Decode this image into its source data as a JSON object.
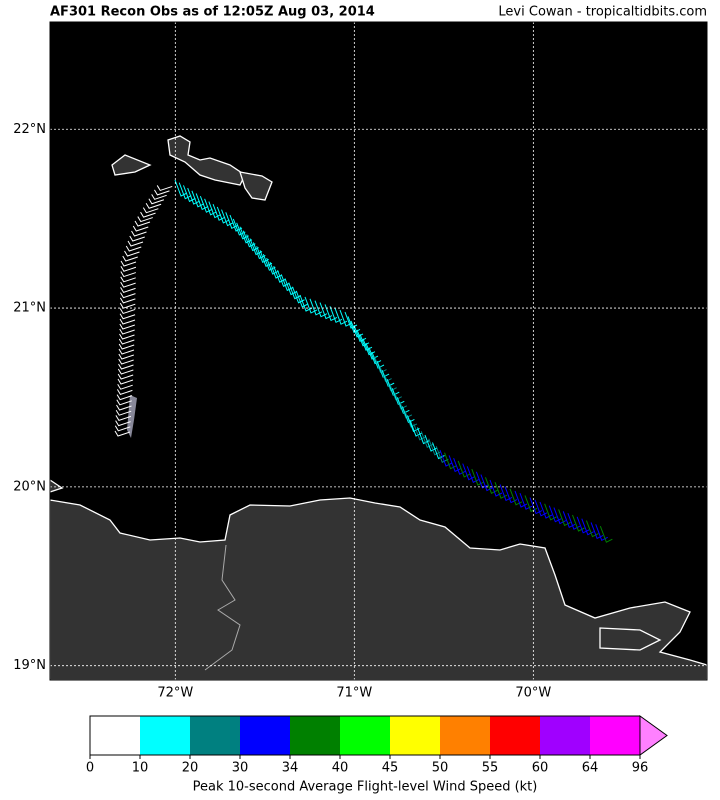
{
  "title": "AF301 Recon Obs as of 12:05Z Aug 03, 2014",
  "credit": "Levi Cowan - tropicaltidbits.com",
  "map": {
    "xlim": [
      -72.7,
      -69.03
    ],
    "ylim": [
      18.92,
      22.6
    ],
    "grid": true,
    "xticks": [
      {
        "value": -72,
        "label": "72°W"
      },
      {
        "value": -71,
        "label": "71°W"
      },
      {
        "value": -70,
        "label": "70°W"
      }
    ],
    "yticks": [
      {
        "value": 19,
        "label": "19°N"
      },
      {
        "value": 20,
        "label": "20°N"
      },
      {
        "value": 21,
        "label": "21°N"
      },
      {
        "value": 22,
        "label": "22°N"
      }
    ]
  },
  "colorbar": {
    "label": "Peak 10-second Average Flight-level Wind Speed (kt)",
    "ticks": [
      0,
      10,
      20,
      30,
      34,
      40,
      45,
      50,
      55,
      60,
      64,
      96
    ],
    "colors": [
      "#ffffff",
      "#00ffff",
      "#008080",
      "#0000ff",
      "#008000",
      "#00ff00",
      "#ffff00",
      "#ff8000",
      "#ff0000",
      "#a000ff",
      "#ff00ff"
    ],
    "extend_color": "#ff80ff"
  }
}
